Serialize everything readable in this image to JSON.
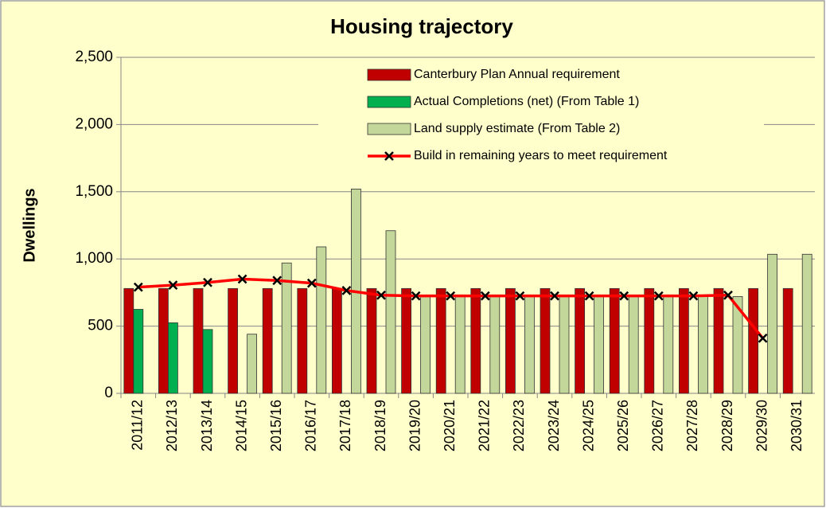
{
  "chart_data": {
    "type": "bar",
    "title": "Housing trajectory",
    "y_label": "Dwellings",
    "categories": [
      "2011/12",
      "2012/13",
      "2013/14",
      "2014/15",
      "2015/16",
      "2016/17",
      "2017/18",
      "2018/19",
      "2019/20",
      "2020/21",
      "2021/22",
      "2022/23",
      "2023/24",
      "2024/25",
      "2025/26",
      "2026/27",
      "2027/28",
      "2028/29",
      "2029/30",
      "2030/31"
    ],
    "series": [
      {
        "name": "Canterbury Plan Annual requirement",
        "color": "#c00000",
        "type": "bar",
        "values": [
          780,
          780,
          780,
          780,
          780,
          780,
          780,
          780,
          780,
          780,
          780,
          780,
          780,
          780,
          780,
          780,
          780,
          780,
          780,
          780
        ]
      },
      {
        "name": "Actual Completions (net) (From Table 1)",
        "color": "#00b050",
        "type": "bar",
        "values": [
          625,
          525,
          475,
          null,
          null,
          null,
          null,
          null,
          null,
          null,
          null,
          null,
          null,
          null,
          null,
          null,
          null,
          null,
          null,
          null
        ]
      },
      {
        "name": "Land supply estimate (From Table 2)",
        "color": "#c4d79b",
        "type": "bar",
        "values": [
          null,
          null,
          null,
          440,
          970,
          1090,
          1520,
          1210,
          720,
          720,
          720,
          720,
          720,
          720,
          720,
          720,
          720,
          720,
          1035,
          1035
        ]
      },
      {
        "name": "Build in remaining years to meet requirement",
        "color": "#ff0000",
        "type": "line",
        "values": [
          790,
          805,
          825,
          850,
          840,
          820,
          765,
          730,
          725,
          725,
          725,
          725,
          725,
          725,
          725,
          725,
          725,
          730,
          410,
          null
        ]
      }
    ],
    "ylim": [
      0,
      2500
    ],
    "yticks": [
      0,
      500,
      {
        "value": 1000,
        "label": "1,000"
      },
      {
        "value": 1500,
        "label": "1,500"
      },
      {
        "value": 2000,
        "label": "2,000"
      },
      {
        "value": 2500,
        "label": "2,500"
      }
    ],
    "grid": true,
    "legend": "top-right"
  }
}
